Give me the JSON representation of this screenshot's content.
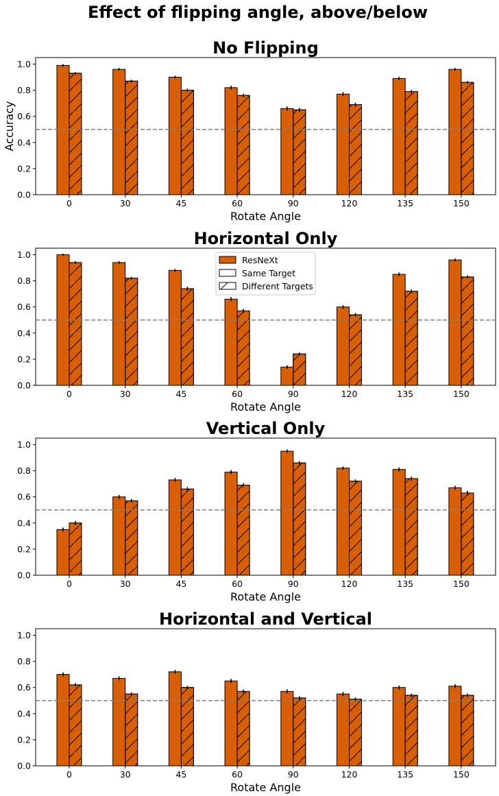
{
  "figure_title": "Effect of flipping angle, above/below",
  "colors": {
    "bar": "#d95f02",
    "edge": "#000000",
    "reference_line": "#808080"
  },
  "legend": {
    "items": [
      "ResNeXt",
      "Same Target",
      "Different Targets"
    ]
  },
  "chart_data": [
    {
      "type": "bar",
      "title": "No Flipping",
      "xlabel": "Rotate Angle",
      "ylabel": "Accuracy",
      "ylim": [
        0,
        1.05
      ],
      "yticks": [
        0.0,
        0.2,
        0.4,
        0.6,
        0.8,
        1.0
      ],
      "reference_line": 0.5,
      "categories": [
        "0",
        "30",
        "45",
        "60",
        "90",
        "120",
        "135",
        "150"
      ],
      "series": [
        {
          "name": "Same Target",
          "hatch": "none",
          "values": [
            0.99,
            0.96,
            0.9,
            0.82,
            0.66,
            0.77,
            0.89,
            0.96
          ],
          "errors": [
            0.005,
            0.005,
            0.006,
            0.01,
            0.01,
            0.01,
            0.008,
            0.005
          ]
        },
        {
          "name": "Different Targets",
          "hatch": "diagonal",
          "values": [
            0.93,
            0.87,
            0.8,
            0.76,
            0.65,
            0.69,
            0.79,
            0.86
          ],
          "errors": [
            0.005,
            0.006,
            0.008,
            0.008,
            0.01,
            0.01,
            0.008,
            0.006
          ]
        }
      ]
    },
    {
      "type": "bar",
      "title": "Horizontal Only",
      "xlabel": "Rotate Angle",
      "ylabel": "",
      "ylim": [
        0,
        1.05
      ],
      "yticks": [
        0.0,
        0.2,
        0.4,
        0.6,
        0.8,
        1.0
      ],
      "reference_line": 0.5,
      "legend": "top-center",
      "categories": [
        "0",
        "30",
        "45",
        "60",
        "90",
        "120",
        "135",
        "150"
      ],
      "series": [
        {
          "name": "Same Target",
          "hatch": "none",
          "values": [
            1.0,
            0.94,
            0.88,
            0.66,
            0.14,
            0.6,
            0.85,
            0.96
          ],
          "errors": [
            0.003,
            0.005,
            0.006,
            0.01,
            0.008,
            0.008,
            0.008,
            0.006
          ]
        },
        {
          "name": "Different Targets",
          "hatch": "diagonal",
          "values": [
            0.94,
            0.82,
            0.74,
            0.57,
            0.24,
            0.54,
            0.72,
            0.83
          ],
          "errors": [
            0.005,
            0.006,
            0.01,
            0.01,
            0.006,
            0.008,
            0.008,
            0.006
          ]
        }
      ]
    },
    {
      "type": "bar",
      "title": "Vertical Only",
      "xlabel": "Rotate Angle",
      "ylabel": "",
      "ylim": [
        0,
        1.05
      ],
      "yticks": [
        0.0,
        0.2,
        0.4,
        0.6,
        0.8,
        1.0
      ],
      "reference_line": 0.5,
      "categories": [
        "0",
        "30",
        "45",
        "60",
        "90",
        "120",
        "135",
        "150"
      ],
      "series": [
        {
          "name": "Same Target",
          "hatch": "none",
          "values": [
            0.35,
            0.6,
            0.73,
            0.79,
            0.95,
            0.82,
            0.81,
            0.67
          ],
          "errors": [
            0.01,
            0.01,
            0.01,
            0.01,
            0.008,
            0.008,
            0.01,
            0.01
          ]
        },
        {
          "name": "Different Targets",
          "hatch": "diagonal",
          "values": [
            0.4,
            0.57,
            0.66,
            0.69,
            0.86,
            0.72,
            0.74,
            0.63
          ],
          "errors": [
            0.01,
            0.008,
            0.01,
            0.01,
            0.008,
            0.008,
            0.01,
            0.01
          ]
        }
      ]
    },
    {
      "type": "bar",
      "title": "Horizontal and Vertical",
      "xlabel": "Rotate Angle",
      "ylabel": "",
      "ylim": [
        0,
        1.05
      ],
      "yticks": [
        0.0,
        0.2,
        0.4,
        0.6,
        0.8,
        1.0
      ],
      "reference_line": 0.5,
      "categories": [
        "0",
        "30",
        "45",
        "60",
        "90",
        "120",
        "135",
        "150"
      ],
      "series": [
        {
          "name": "Same Target",
          "hatch": "none",
          "values": [
            0.7,
            0.67,
            0.72,
            0.65,
            0.57,
            0.55,
            0.6,
            0.61
          ],
          "errors": [
            0.01,
            0.01,
            0.01,
            0.01,
            0.01,
            0.01,
            0.01,
            0.01
          ]
        },
        {
          "name": "Different Targets",
          "hatch": "diagonal",
          "values": [
            0.62,
            0.55,
            0.6,
            0.57,
            0.52,
            0.51,
            0.54,
            0.54
          ],
          "errors": [
            0.008,
            0.008,
            0.008,
            0.008,
            0.008,
            0.008,
            0.008,
            0.008
          ]
        }
      ]
    }
  ]
}
